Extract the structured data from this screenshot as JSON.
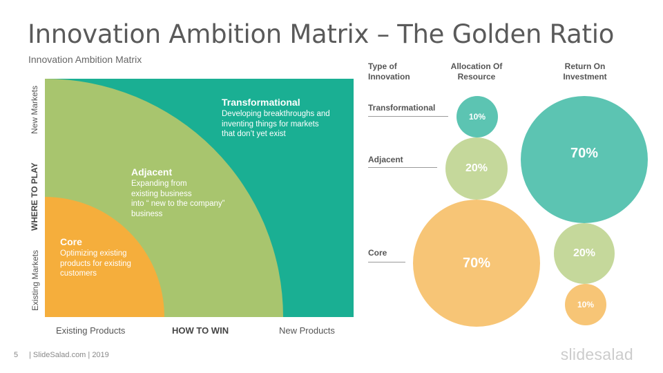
{
  "header": {
    "title": "Innovation Ambition Matrix – The Golden Ratio",
    "subtitle": "Innovation Ambition Matrix"
  },
  "matrix": {
    "zones": {
      "transformational": {
        "title": "Transformational",
        "desc": "Developing breakthroughs and\ninventing things for markets\nthat don’t yet exist"
      },
      "adjacent": {
        "title": "Adjacent",
        "desc": "Expanding from\nexisting business\ninto “ new to the company”\nbusiness"
      },
      "core": {
        "title": "Core",
        "desc": "Optimizing existing\nproducts for existing\ncustomers"
      }
    },
    "y_axis": {
      "top": "New Markets",
      "middle": "WHERE TO PLAY",
      "bottom": "Existing Markets"
    },
    "x_axis": {
      "left": "Existing Products",
      "middle": "HOW TO WIN",
      "right": "New Products"
    },
    "colors": {
      "transformational": "#1aaf93",
      "adjacent": "#a8c56e",
      "core": "#f5ae3c"
    }
  },
  "ratio": {
    "headers": {
      "type": "Type of\nInnovation",
      "allocation": "Allocation  Of\nResource",
      "roi": "Return On\nInvestment"
    },
    "rows": {
      "transformational": {
        "label": "Transformational",
        "allocation": "10%",
        "roi": "70%"
      },
      "adjacent": {
        "label": "Adjacent",
        "allocation": "20%",
        "roi": "20%"
      },
      "core": {
        "label": "Core",
        "allocation": "70%",
        "roi": "10%"
      }
    }
  },
  "footer": {
    "page_number": "5",
    "text": "| SlideSalad.com | 2019",
    "brand": "slidesalad"
  }
}
